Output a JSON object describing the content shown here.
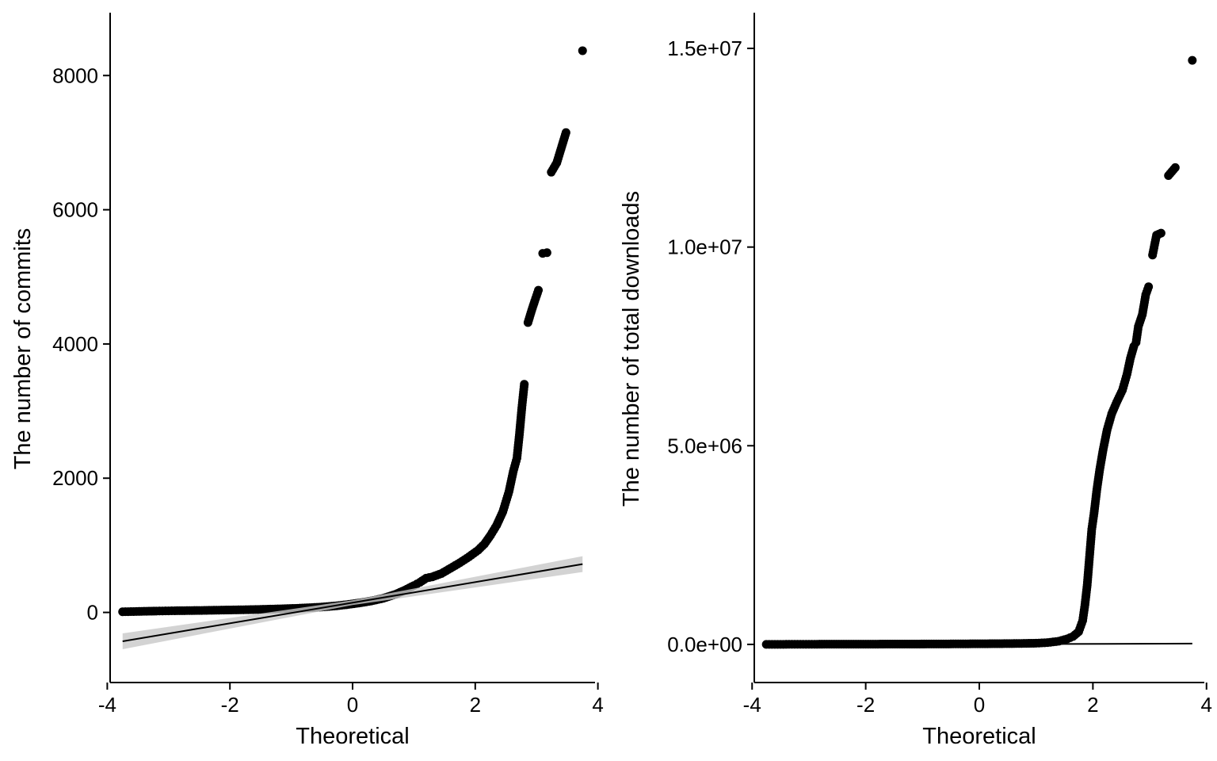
{
  "chart_data": [
    {
      "type": "scatter",
      "subtype": "qq-plot",
      "title": "",
      "xlabel": "Theoretical",
      "ylabel": "The number of commits",
      "xlim": [
        -3.85,
        3.85
      ],
      "ylim": [
        -950,
        8700
      ],
      "xticks": [
        -4,
        -2,
        0,
        2,
        4
      ],
      "xtick_labels": [
        "-4",
        "-2",
        "0",
        "2",
        "4"
      ],
      "yticks": [
        0,
        2000,
        4000,
        6000,
        8000
      ],
      "ytick_labels": [
        "0",
        "2000",
        "4000",
        "6000",
        "8000"
      ],
      "grid": false,
      "legend": "none",
      "reference_line": {
        "x": [
          -3.75,
          3.75
        ],
        "y": [
          -430,
          720
        ],
        "ci_band": true
      },
      "points": [
        [
          -3.75,
          10
        ],
        [
          -3.48,
          15
        ],
        [
          -3.32,
          18
        ],
        [
          -3.2,
          20
        ],
        [
          -3.1,
          22
        ],
        [
          -3.0,
          23
        ],
        [
          -2.9,
          25
        ],
        [
          -2.7,
          27
        ],
        [
          -2.5,
          29
        ],
        [
          -2.3,
          32
        ],
        [
          -2.1,
          35
        ],
        [
          -1.9,
          38
        ],
        [
          -1.7,
          41
        ],
        [
          -1.5,
          45
        ],
        [
          -1.3,
          50
        ],
        [
          -1.1,
          55
        ],
        [
          -0.9,
          62
        ],
        [
          -0.7,
          70
        ],
        [
          -0.5,
          80
        ],
        [
          -0.3,
          95
        ],
        [
          -0.1,
          115
        ],
        [
          0.1,
          140
        ],
        [
          0.3,
          170
        ],
        [
          0.5,
          210
        ],
        [
          0.7,
          270
        ],
        [
          0.85,
          330
        ],
        [
          1.0,
          400
        ],
        [
          1.1,
          450
        ],
        [
          1.2,
          510
        ],
        [
          1.3,
          530
        ],
        [
          1.45,
          580
        ],
        [
          1.6,
          660
        ],
        [
          1.75,
          740
        ],
        [
          1.9,
          830
        ],
        [
          2.05,
          930
        ],
        [
          2.15,
          1020
        ],
        [
          2.25,
          1150
        ],
        [
          2.35,
          1300
        ],
        [
          2.45,
          1500
        ],
        [
          2.55,
          1800
        ],
        [
          2.62,
          2100
        ],
        [
          2.68,
          2300
        ],
        [
          2.72,
          2650
        ],
        [
          2.76,
          3050
        ],
        [
          2.8,
          3400
        ],
        [
          2.86,
          4320
        ],
        [
          2.92,
          4500
        ],
        [
          2.97,
          4640
        ],
        [
          3.03,
          4800
        ],
        [
          3.1,
          5350
        ],
        [
          3.17,
          5360
        ],
        [
          3.24,
          6560
        ],
        [
          3.33,
          6700
        ],
        [
          3.48,
          7150
        ],
        [
          3.75,
          8370
        ]
      ]
    },
    {
      "type": "scatter",
      "subtype": "qq-plot",
      "title": "",
      "xlabel": "Theoretical",
      "ylabel": "The number of total downloads",
      "xlim": [
        -3.85,
        3.85
      ],
      "ylim": [
        -800000,
        15500000
      ],
      "xticks": [
        -4,
        -2,
        0,
        2,
        4
      ],
      "xtick_labels": [
        "-4",
        "-2",
        "0",
        "2",
        "4"
      ],
      "yticks": [
        0,
        5000000,
        10000000,
        15000000
      ],
      "ytick_labels": [
        "0.0e+00",
        "5.0e+06",
        "1.0e+07",
        "1.5e+07"
      ],
      "grid": false,
      "legend": "none",
      "reference_line": {
        "x": [
          -3.75,
          3.75
        ],
        "y": [
          -10000,
          20000
        ],
        "ci_band": false
      },
      "points": [
        [
          -3.75,
          0
        ],
        [
          -3.55,
          0
        ],
        [
          -3.4,
          2000
        ],
        [
          -3.25,
          3000
        ],
        [
          -3.1,
          3000
        ],
        [
          -2.9,
          4000
        ],
        [
          -2.6,
          5000
        ],
        [
          -2.3,
          5000
        ],
        [
          -2.0,
          6000
        ],
        [
          -1.7,
          7000
        ],
        [
          -1.4,
          8000
        ],
        [
          -1.1,
          9000
        ],
        [
          -0.8,
          10000
        ],
        [
          -0.5,
          12000
        ],
        [
          -0.2,
          14000
        ],
        [
          0.1,
          16000
        ],
        [
          0.4,
          19000
        ],
        [
          0.7,
          23000
        ],
        [
          1.0,
          30000
        ],
        [
          1.2,
          45000
        ],
        [
          1.4,
          80000
        ],
        [
          1.55,
          140000
        ],
        [
          1.65,
          200000
        ],
        [
          1.75,
          320000
        ],
        [
          1.82,
          600000
        ],
        [
          1.86,
          1000000
        ],
        [
          1.9,
          1500000
        ],
        [
          1.94,
          2200000
        ],
        [
          1.98,
          2900000
        ],
        [
          2.02,
          3300000
        ],
        [
          2.07,
          3900000
        ],
        [
          2.12,
          4400000
        ],
        [
          2.18,
          4900000
        ],
        [
          2.25,
          5400000
        ],
        [
          2.33,
          5800000
        ],
        [
          2.42,
          6100000
        ],
        [
          2.52,
          6400000
        ],
        [
          2.6,
          6800000
        ],
        [
          2.66,
          7200000
        ],
        [
          2.72,
          7500000
        ],
        [
          2.76,
          7600000
        ],
        [
          2.8,
          8000000
        ],
        [
          2.87,
          8300000
        ],
        [
          2.93,
          8800000
        ],
        [
          2.98,
          9000000
        ],
        [
          3.05,
          9800000
        ],
        [
          3.12,
          10300000
        ],
        [
          3.2,
          10350000
        ],
        [
          3.33,
          11800000
        ],
        [
          3.45,
          12000000
        ],
        [
          3.75,
          14700000
        ]
      ]
    }
  ]
}
